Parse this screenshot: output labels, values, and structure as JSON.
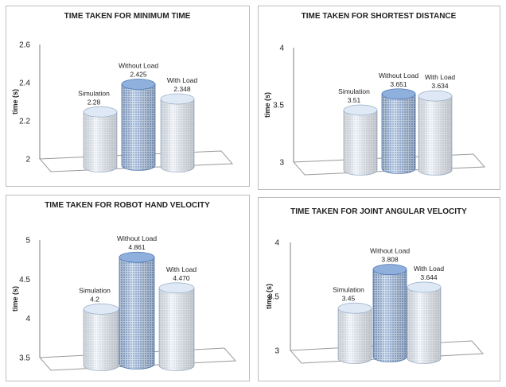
{
  "chart_data": [
    {
      "type": "bar",
      "title": "TIME TAKEN FOR MINIMUM TIME",
      "ylabel": "time (s)",
      "ylim": [
        2,
        2.6
      ],
      "yticks": [
        "2",
        "2.2",
        "2.4",
        "2.6"
      ],
      "categories": [
        "Simulation",
        "Without Load",
        "With Load"
      ],
      "values": [
        2.28,
        2.425,
        2.348
      ],
      "value_labels": [
        "2.28",
        "2.425",
        "2.348"
      ]
    },
    {
      "type": "bar",
      "title": "TIME TAKEN FOR SHORTEST DISTANCE",
      "ylabel": "time (s)",
      "ylim": [
        3,
        4
      ],
      "yticks": [
        "3",
        "3.5",
        "4"
      ],
      "categories": [
        "Simulation",
        "Without Load",
        "With Load"
      ],
      "values": [
        3.51,
        3.651,
        3.634
      ],
      "value_labels": [
        "3.51",
        "3.651",
        "3.634"
      ]
    },
    {
      "type": "bar",
      "title": "TIME TAKEN FOR ROBOT HAND VELOCITY",
      "ylabel": "time (s)",
      "ylim": [
        3.5,
        5
      ],
      "yticks": [
        "3.5",
        "4",
        "4.5",
        "5"
      ],
      "categories": [
        "Simulation",
        "Without Load",
        "With Load"
      ],
      "values": [
        4.2,
        4.861,
        4.47
      ],
      "value_labels": [
        "4.2",
        "4.861",
        "4.470"
      ]
    },
    {
      "type": "bar",
      "title": "TIME TAKEN FOR JOINT ANGULAR VELOCITY",
      "ylabel": "time (s)",
      "ylim": [
        3,
        4
      ],
      "yticks": [
        "3",
        "3.5",
        "4"
      ],
      "categories": [
        "Simulation",
        "Without Load",
        "With Load"
      ],
      "values": [
        3.45,
        3.808,
        3.644
      ],
      "value_labels": [
        "3.45",
        "3.808",
        "3.644"
      ]
    }
  ],
  "colors": {
    "light_cylinder": "#dfe9f5",
    "light_cylinder_edge": "#9fb3cc",
    "dark_cylinder": "#8fb0dc",
    "dark_cylinder_edge": "#4f78b4",
    "axis": "#7f7f7f",
    "floor": "#9a9a9a"
  }
}
